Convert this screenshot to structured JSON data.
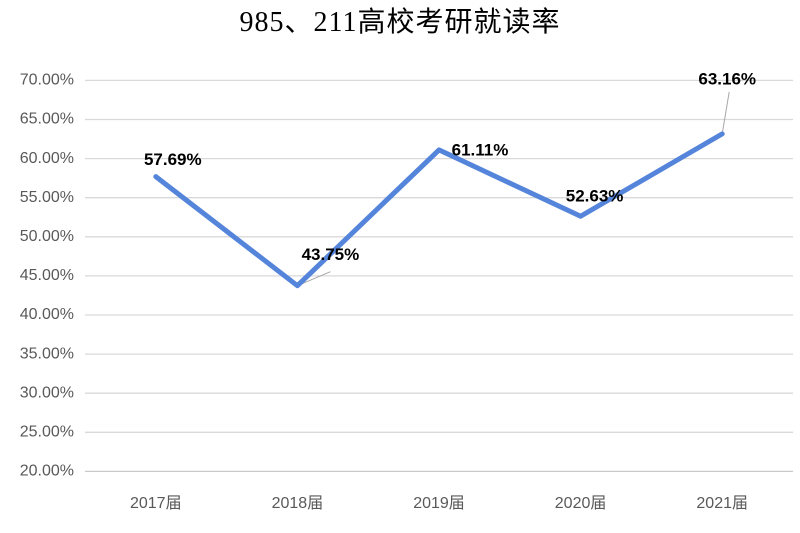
{
  "chart_data": {
    "type": "line",
    "title": "985、211高校考研就读率",
    "categories": [
      "2017届",
      "2018届",
      "2019届",
      "2020届",
      "2021届"
    ],
    "values": [
      57.69,
      43.75,
      61.11,
      52.63,
      63.16
    ],
    "data_labels": [
      "57.69%",
      "43.75%",
      "61.11%",
      "52.63%",
      "63.16%"
    ],
    "y_tick_values": [
      70,
      65,
      60,
      55,
      50,
      45,
      40,
      35,
      30,
      25,
      20
    ],
    "y_tick_labels": [
      "70.00%",
      "65.00%",
      "60.00%",
      "55.00%",
      "50.00%",
      "45.00%",
      "40.00%",
      "35.00%",
      "30.00%",
      "25.00%",
      "20.00%"
    ],
    "ylim": [
      20,
      70
    ],
    "xlabel": "",
    "ylabel": "",
    "grid": true,
    "legend": "none",
    "colors": {
      "series_line": "#5585DB",
      "gridline": "#D9D9D9",
      "bottom_axis_line": "#C9C9C9",
      "axis_text": "#595959",
      "data_label": "#000000",
      "leader_line": "#A6A6A6",
      "title_text": "#000000",
      "background": "#FFFFFF"
    }
  }
}
